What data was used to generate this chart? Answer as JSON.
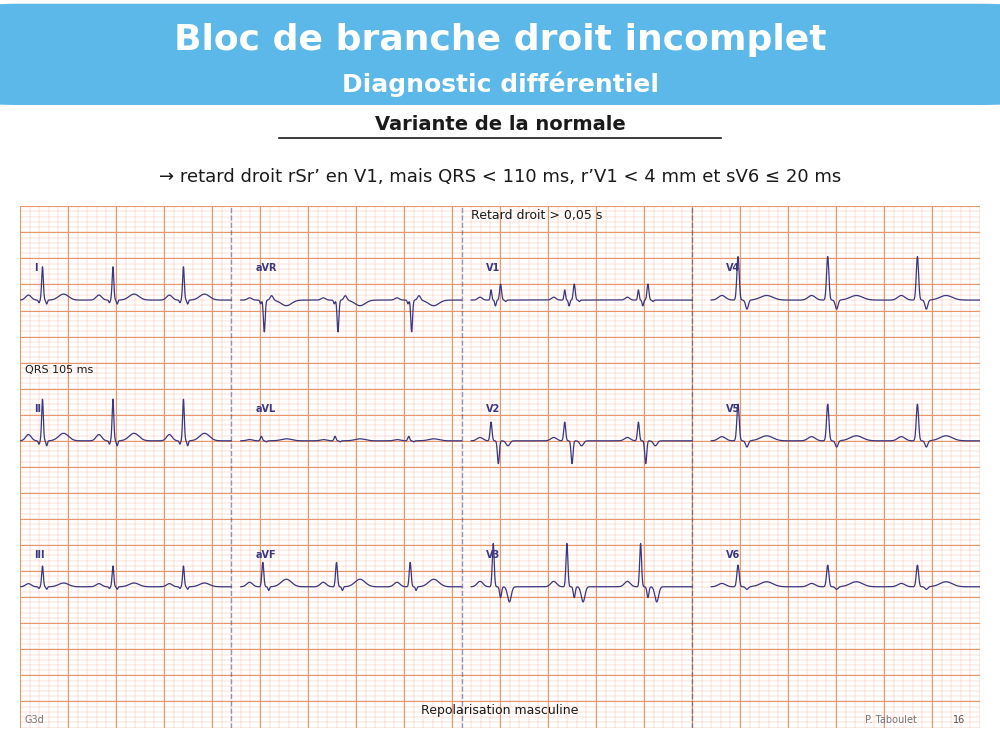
{
  "title_line1": "Bloc de branche droit incomplet",
  "title_line2": "Diagnostic différentiel",
  "title_bg_color": "#5BB8E8",
  "title_text_color": "#FFFFFF",
  "bg_color": "#FFFFFF",
  "subtitle_underlined": "Variante de la normale",
  "subtitle_arrow_text": "→ retard droit rSr’ en V1, mais QRS < 110 ms, r’V1 < 4 mm et sV6 ≤ 20 ms",
  "ecg_bg_color": "#F5ECD7",
  "ecg_line_color": "#3B3680",
  "ecg_grid_minor_color": "#F0BBA0",
  "ecg_grid_major_color": "#E8966A",
  "label_retard": "Retard droit > 0,05 s",
  "label_qrs": "QRS 105 ms",
  "label_repol": "Repolarisation masculine",
  "label_g3d": "G3d",
  "label_taboulet": "P. Taboulet",
  "label_page": "16",
  "leads_row1": [
    "I",
    "aVR",
    "V1",
    "V4"
  ],
  "leads_row2": [
    "II",
    "aVL",
    "V2",
    "V5"
  ],
  "leads_row3": [
    "III",
    "aVF",
    "V3",
    "V6"
  ],
  "text_color": "#1A1A1A"
}
